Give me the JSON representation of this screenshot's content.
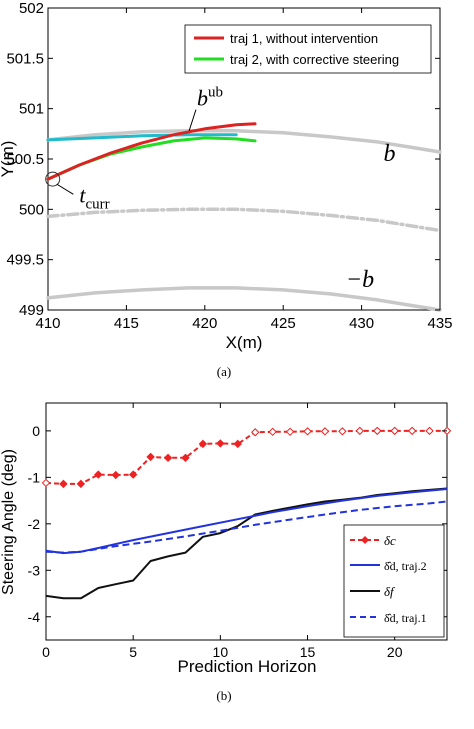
{
  "chart_data": [
    {
      "type": "line",
      "caption": "(a)",
      "xlabel": "X(m)",
      "ylabel": "Y(m)",
      "xlim": [
        410,
        435
      ],
      "ylim": [
        499,
        502
      ],
      "xticks": [
        410,
        415,
        420,
        425,
        430,
        435
      ],
      "yticks": [
        499,
        499.5,
        500,
        500.5,
        501,
        501.5,
        502
      ],
      "grid": false,
      "legend_position": "top-right",
      "series": [
        {
          "name": "traj 1, without intervention",
          "color": "#dd2222",
          "x": [
            410,
            412,
            414,
            416,
            418,
            420,
            422,
            423.2
          ],
          "y": [
            500.3,
            500.44,
            500.56,
            500.66,
            500.74,
            500.8,
            500.84,
            500.85
          ]
        },
        {
          "name": "traj 2, with corrective steering",
          "color": "#22dd22",
          "x": [
            410,
            412,
            414,
            416,
            418,
            420,
            422,
            423.2
          ],
          "y": [
            500.3,
            500.44,
            500.55,
            500.62,
            500.68,
            500.71,
            500.7,
            500.68
          ]
        },
        {
          "name": "",
          "color": "#22bbcc",
          "x": [
            410,
            413,
            416,
            419,
            422
          ],
          "y": [
            500.69,
            500.71,
            500.73,
            500.74,
            500.74
          ]
        },
        {
          "name": "",
          "color": "#c8c8c8",
          "x": [
            410,
            413,
            416,
            419,
            422,
            425,
            428,
            431,
            433,
            435
          ],
          "y": [
            500.69,
            500.74,
            500.77,
            500.78,
            500.78,
            500.76,
            500.72,
            500.67,
            500.62,
            500.57
          ]
        },
        {
          "name": "",
          "color": "#c8c8c8",
          "style": "dashdot",
          "x": [
            410,
            413,
            416,
            419,
            422,
            425,
            428,
            431,
            435
          ],
          "y": [
            499.93,
            499.97,
            499.99,
            500.0,
            500.0,
            499.98,
            499.94,
            499.89,
            499.79
          ]
        },
        {
          "name": "",
          "color": "#c8c8c8",
          "x": [
            410,
            413,
            416,
            419,
            422,
            425,
            428,
            431,
            433,
            435
          ],
          "y": [
            499.12,
            499.17,
            499.2,
            499.22,
            499.22,
            499.2,
            499.16,
            499.1,
            499.05,
            499.0
          ]
        }
      ],
      "annotations": {
        "bub": {
          "base": "b",
          "sup": "ub",
          "x": 419.5,
          "y": 501.03
        },
        "b": {
          "text": "b",
          "x": 431.4,
          "y": 500.48
        },
        "neg_b": {
          "text": "−b",
          "x": 429,
          "y": 499.23
        },
        "tcurr": {
          "base": "t",
          "sub": "curr",
          "x": 412,
          "y": 500.07
        },
        "circle": {
          "x": 410.3,
          "y": 500.3
        }
      }
    },
    {
      "type": "line",
      "caption": "(b)",
      "xlabel": "Prediction Horizon",
      "ylabel": "Steering Angle (deg)",
      "xlim": [
        0,
        23
      ],
      "ylim": [
        -4.5,
        0.6
      ],
      "xticks": [
        0,
        5,
        10,
        15,
        20
      ],
      "yticks": [
        -4,
        -3,
        -2,
        -1,
        0
      ],
      "grid": false,
      "legend_position": "bottom-right",
      "series": [
        {
          "name": "δc",
          "color": "#ee2222",
          "style": "dashed-diamond",
          "x": [
            0,
            1,
            2,
            3,
            4,
            5,
            6,
            7,
            8,
            9,
            10,
            11,
            12,
            13,
            14,
            15,
            16,
            17,
            18,
            19,
            20,
            21,
            22,
            23
          ],
          "y": [
            -1.12,
            -1.14,
            -1.14,
            -0.94,
            -0.95,
            -0.94,
            -0.56,
            -0.58,
            -0.58,
            -0.28,
            -0.27,
            -0.28,
            -0.03,
            -0.02,
            -0.02,
            -0.01,
            -0.01,
            -0.01,
            0,
            0,
            0,
            0,
            0,
            0
          ]
        },
        {
          "name": "δ̂d, traj.2",
          "color": "#2233dd",
          "style": "solid",
          "x": [
            0,
            1,
            2,
            3,
            5,
            7,
            9,
            11,
            13,
            15,
            17,
            19,
            21,
            23
          ],
          "y": [
            -2.58,
            -2.63,
            -2.6,
            -2.52,
            -2.35,
            -2.2,
            -2.05,
            -1.9,
            -1.75,
            -1.62,
            -1.5,
            -1.4,
            -1.32,
            -1.25
          ]
        },
        {
          "name": "δf",
          "color": "#111111",
          "style": "solid",
          "x": [
            0,
            1,
            2,
            3,
            4,
            5,
            6,
            7,
            8,
            9,
            10,
            11,
            12,
            13,
            14,
            15,
            16,
            17,
            18,
            19,
            20,
            21,
            22,
            23
          ],
          "y": [
            -3.55,
            -3.6,
            -3.6,
            -3.38,
            -3.3,
            -3.22,
            -2.8,
            -2.7,
            -2.62,
            -2.28,
            -2.2,
            -2.05,
            -1.8,
            -1.72,
            -1.65,
            -1.58,
            -1.52,
            -1.48,
            -1.44,
            -1.38,
            -1.34,
            -1.3,
            -1.27,
            -1.24
          ]
        },
        {
          "name": "δ̂d, traj.1",
          "color": "#2233dd",
          "style": "dashed",
          "x": [
            0,
            1,
            2,
            4,
            6,
            8,
            10,
            12,
            14,
            16,
            18,
            20,
            22,
            23
          ],
          "y": [
            -2.6,
            -2.62,
            -2.6,
            -2.48,
            -2.38,
            -2.27,
            -2.15,
            -2.02,
            -1.91,
            -1.8,
            -1.7,
            -1.62,
            -1.56,
            -1.52
          ]
        }
      ]
    }
  ]
}
